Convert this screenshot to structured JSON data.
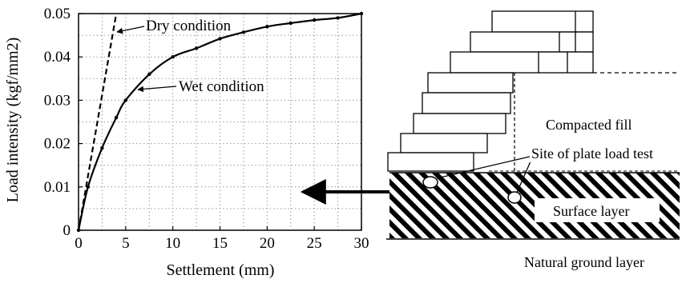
{
  "chart_data": {
    "type": "line",
    "xlabel": "Settlement (mm)",
    "ylabel": "Load intensity (kgf/mm2)",
    "xlim": [
      0,
      30
    ],
    "ylim": [
      0,
      0.05
    ],
    "x_ticks": [
      "0",
      "5",
      "10",
      "15",
      "20",
      "25",
      "30"
    ],
    "y_ticks": [
      "0",
      "0.01",
      "0.02",
      "0.03",
      "0.04",
      "0.05"
    ],
    "grid": "dotted",
    "series": [
      {
        "name": "Dry condition",
        "style": "dashed",
        "points": [
          [
            0,
            0
          ],
          [
            4,
            0.05
          ]
        ]
      },
      {
        "name": "Wet condition",
        "style": "solid",
        "points": [
          [
            0,
            0
          ],
          [
            1,
            0.01
          ],
          [
            2.5,
            0.019
          ],
          [
            4,
            0.026
          ],
          [
            5,
            0.03
          ],
          [
            7.5,
            0.036
          ],
          [
            10,
            0.04
          ],
          [
            12.5,
            0.042
          ],
          [
            15,
            0.0442
          ],
          [
            17.5,
            0.0457
          ],
          [
            20,
            0.047
          ],
          [
            22.5,
            0.0478
          ],
          [
            25,
            0.0485
          ],
          [
            27.5,
            0.049
          ],
          [
            30,
            0.05
          ]
        ]
      }
    ],
    "annotations": [
      "Dry condition",
      "Wet condition"
    ]
  },
  "diagram": {
    "labels": {
      "compacted_fill": "Compacted fill",
      "site_plate_test": "Site of plate load test",
      "surface_layer": "Surface layer",
      "natural_ground": "Natural ground layer"
    }
  }
}
